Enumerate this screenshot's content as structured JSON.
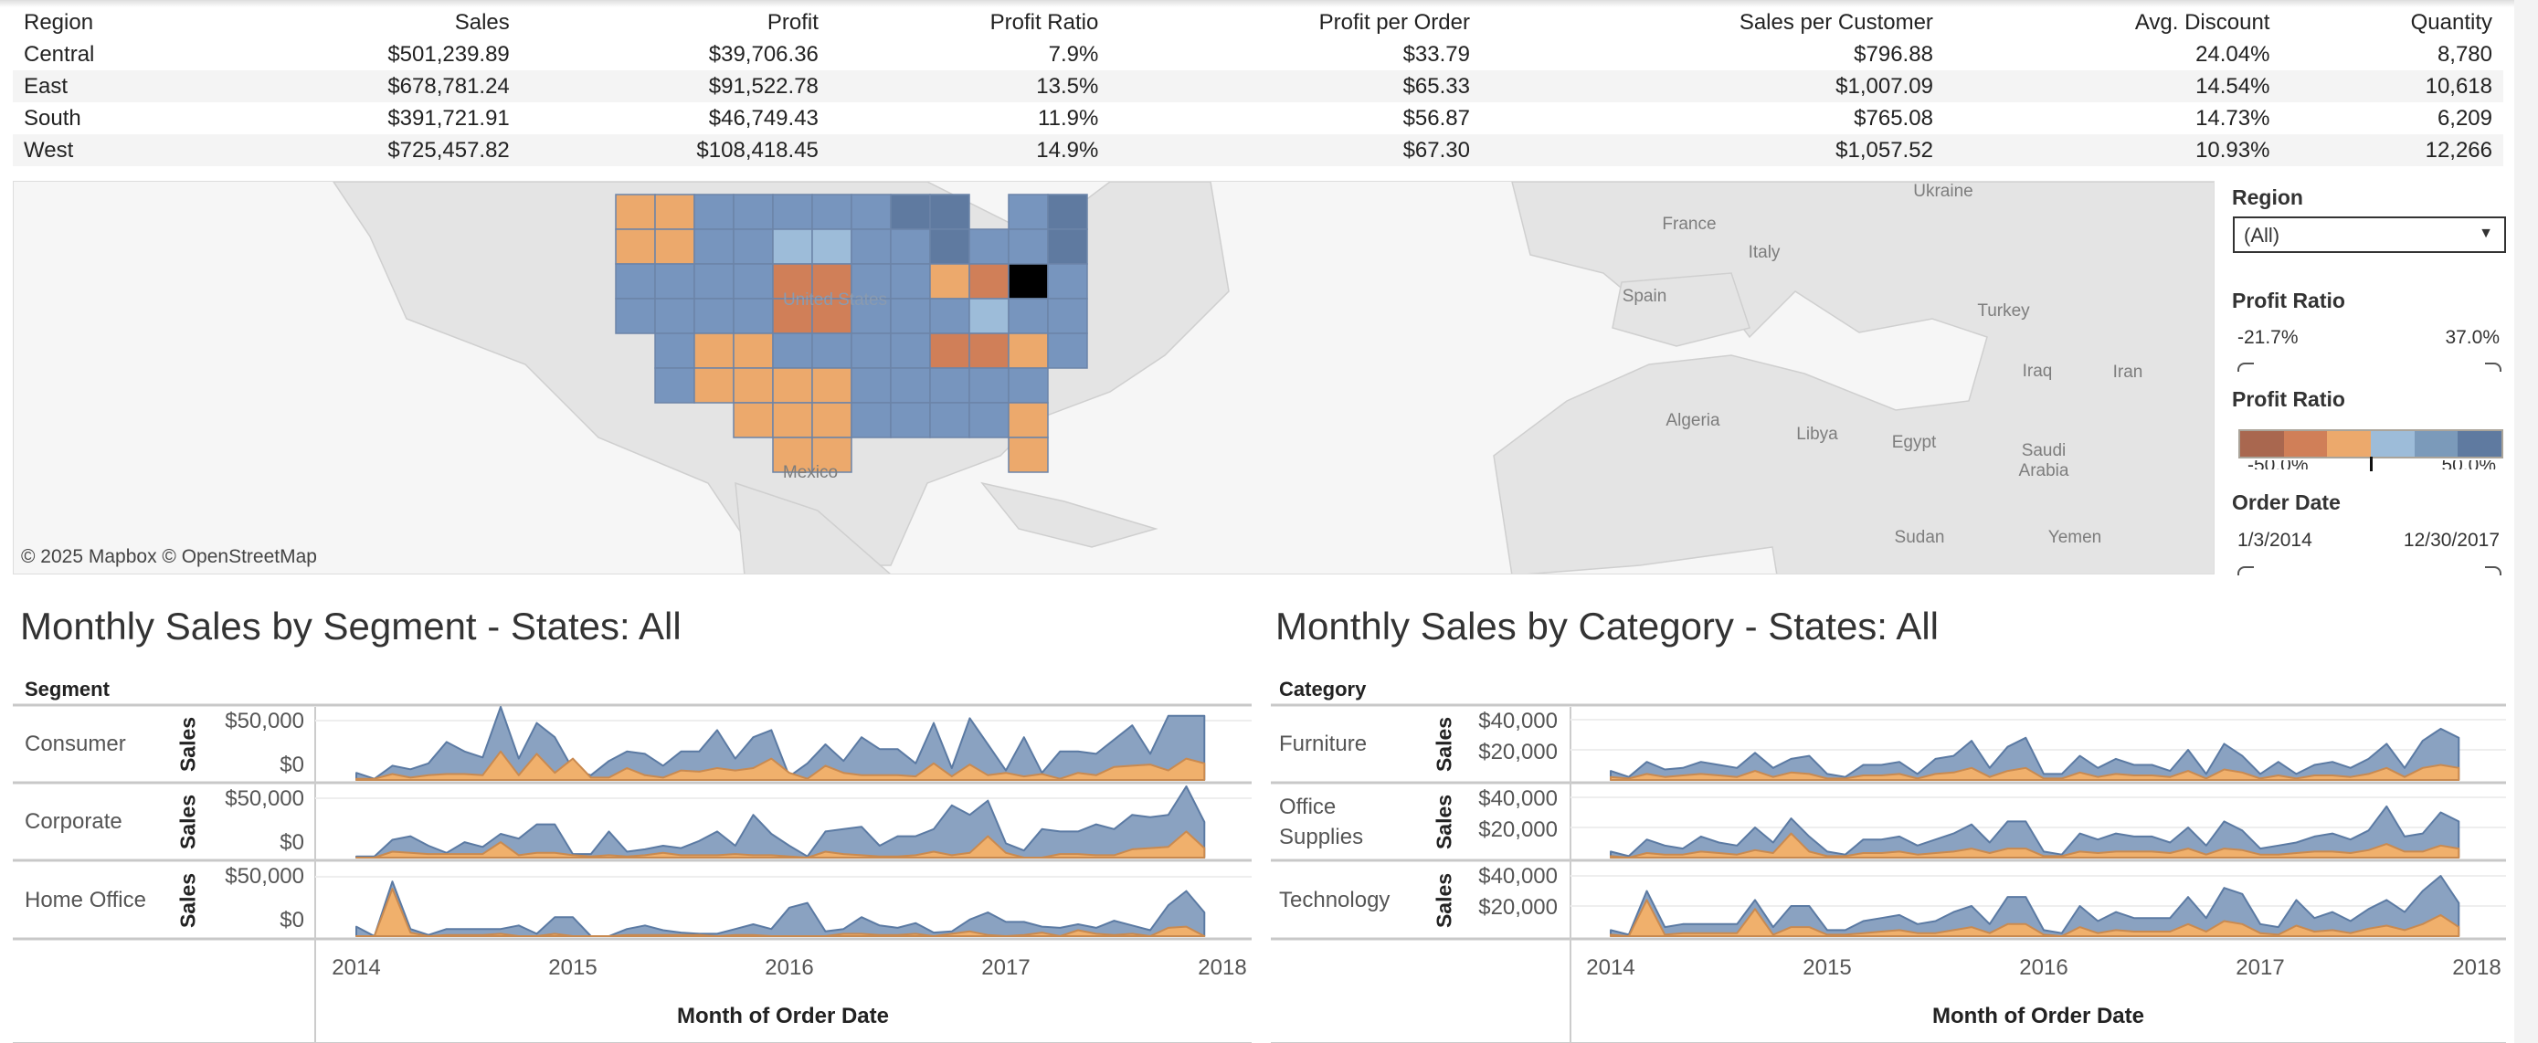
{
  "table": {
    "headers": [
      "Region",
      "Sales",
      "Profit",
      "Profit Ratio",
      "Profit per Order",
      "Sales per Customer",
      "Avg. Discount",
      "Quantity"
    ],
    "rows": [
      [
        "Central",
        "$501,239.89",
        "$39,706.36",
        "7.9%",
        "$33.79",
        "$796.88",
        "24.04%",
        "8,780"
      ],
      [
        "East",
        "$678,781.24",
        "$91,522.78",
        "13.5%",
        "$65.33",
        "$1,007.09",
        "14.54%",
        "10,618"
      ],
      [
        "South",
        "$391,721.91",
        "$46,749.43",
        "11.9%",
        "$56.87",
        "$765.08",
        "14.73%",
        "6,209"
      ],
      [
        "West",
        "$725,457.82",
        "$108,418.45",
        "14.9%",
        "$67.30",
        "$1,057.52",
        "10.93%",
        "12,266"
      ]
    ]
  },
  "map": {
    "labels": [
      "Mexico",
      "United States",
      "France",
      "Italy",
      "Spain",
      "Ukraine",
      "Turkey",
      "Algeria",
      "Libya",
      "Egypt",
      "Iraq",
      "Iran",
      "Saudi Arabia",
      "Sudan",
      "Yemen"
    ],
    "copyright": "© 2025 Mapbox  © OpenStreetMap"
  },
  "filters": {
    "region_label": "Region",
    "region_value": "(All)",
    "profit_ratio_label": "Profit Ratio",
    "profit_ratio_min": "-21.7%",
    "profit_ratio_max": "37.0%",
    "legend_label": "Profit Ratio",
    "legend_min": "-50.0%",
    "legend_max": "50.0%",
    "legend_colors": [
      "#a9674f",
      "#d07f58",
      "#eca96c",
      "#9dbcd9",
      "#7b9aba",
      "#5f7aa0"
    ],
    "order_date_label": "Order Date",
    "order_date_min": "1/3/2014",
    "order_date_max": "12/30/2017"
  },
  "chart_data": [
    {
      "type": "area",
      "title": "Monthly Sales by Segment - States: All",
      "row_header": "Segment",
      "ylabel": "Sales",
      "xlabel": "Month of Order Date",
      "x_ticks": [
        "2014",
        "2015",
        "2016",
        "2017",
        "2018"
      ],
      "y_ticks": [
        "$50,000",
        "$0"
      ],
      "units": "thousands USD, monthly Jan 2014 - Dec 2017",
      "rows": [
        {
          "name": "Consumer",
          "blue": [
            6,
            1,
            12,
            9,
            14,
            32,
            24,
            19,
            62,
            18,
            48,
            36,
            9,
            4,
            16,
            24,
            22,
            12,
            24,
            24,
            42,
            18,
            36,
            42,
            3,
            14,
            30,
            16,
            36,
            26,
            26,
            14,
            48,
            10,
            52,
            30,
            8,
            36,
            6,
            24,
            24,
            22,
            34,
            46,
            22,
            54,
            54,
            54
          ],
          "orange": [
            1,
            1,
            5,
            2,
            4,
            5,
            5,
            4,
            24,
            4,
            22,
            6,
            18,
            2,
            2,
            10,
            4,
            2,
            8,
            7,
            10,
            8,
            10,
            18,
            6,
            1,
            12,
            6,
            4,
            4,
            4,
            3,
            14,
            3,
            13,
            4,
            6,
            3,
            5,
            1,
            6,
            4,
            11,
            12,
            13,
            8,
            18,
            14
          ]
        },
        {
          "name": "Corporate",
          "blue": [
            1,
            1,
            15,
            18,
            10,
            4,
            13,
            9,
            20,
            16,
            28,
            28,
            3,
            3,
            22,
            5,
            7,
            10,
            8,
            14,
            22,
            10,
            36,
            20,
            10,
            1,
            22,
            24,
            26,
            10,
            18,
            18,
            24,
            44,
            36,
            48,
            12,
            6,
            24,
            22,
            22,
            28,
            24,
            36,
            34,
            36,
            60,
            30
          ],
          "orange": [
            0,
            0,
            5,
            4,
            3,
            3,
            3,
            3,
            13,
            2,
            4,
            4,
            2,
            1,
            2,
            1,
            2,
            4,
            2,
            2,
            2,
            3,
            2,
            2,
            1,
            0,
            5,
            3,
            2,
            1,
            1,
            2,
            5,
            2,
            4,
            18,
            4,
            0,
            0,
            3,
            3,
            2,
            2,
            7,
            8,
            9,
            22,
            8
          ]
        },
        {
          "name": "Home Office",
          "blue": [
            8,
            0,
            46,
            6,
            1,
            6,
            6,
            6,
            6,
            9,
            2,
            16,
            16,
            0,
            0,
            6,
            9,
            5,
            3,
            2,
            2,
            6,
            10,
            6,
            24,
            28,
            4,
            6,
            16,
            9,
            7,
            11,
            3,
            4,
            14,
            20,
            12,
            12,
            8,
            7,
            10,
            7,
            13,
            9,
            5,
            26,
            38,
            20
          ],
          "orange": [
            0,
            0,
            40,
            3,
            0,
            1,
            1,
            1,
            2,
            0,
            0,
            2,
            0,
            0,
            0,
            1,
            1,
            1,
            1,
            1,
            0,
            1,
            1,
            0,
            0,
            0,
            0,
            2,
            2,
            1,
            1,
            2,
            0,
            2,
            4,
            1,
            0,
            1,
            3,
            0,
            5,
            2,
            1,
            2,
            0,
            7,
            8,
            0
          ]
        }
      ]
    },
    {
      "type": "area",
      "title": "Monthly Sales by Category - States: All",
      "row_header": "Category",
      "ylabel": "Sales",
      "xlabel": "Month of Order Date",
      "x_ticks": [
        "2014",
        "2015",
        "2016",
        "2017",
        "2018"
      ],
      "y_ticks": [
        "$40,000",
        "$20,000"
      ],
      "units": "thousands USD, monthly Jan 2014 - Dec 2017",
      "rows": [
        {
          "name": "Furniture",
          "blue": [
            6,
            2,
            12,
            7,
            8,
            12,
            10,
            8,
            18,
            8,
            14,
            16,
            4,
            2,
            10,
            10,
            12,
            4,
            14,
            16,
            26,
            8,
            22,
            28,
            4,
            4,
            16,
            8,
            14,
            10,
            10,
            6,
            20,
            4,
            24,
            16,
            4,
            12,
            4,
            10,
            12,
            8,
            14,
            24,
            8,
            26,
            34,
            28
          ],
          "orange": [
            2,
            1,
            4,
            2,
            3,
            4,
            3,
            2,
            6,
            2,
            5,
            4,
            1,
            1,
            3,
            3,
            4,
            1,
            4,
            5,
            8,
            2,
            6,
            8,
            1,
            1,
            5,
            2,
            4,
            3,
            3,
            2,
            6,
            1,
            7,
            5,
            1,
            3,
            1,
            3,
            3,
            2,
            4,
            8,
            2,
            8,
            10,
            8
          ]
        },
        {
          "name": "Office Supplies",
          "blue": [
            4,
            1,
            12,
            8,
            6,
            14,
            10,
            8,
            20,
            10,
            26,
            14,
            4,
            2,
            12,
            12,
            14,
            8,
            12,
            16,
            22,
            10,
            24,
            24,
            4,
            2,
            16,
            12,
            16,
            14,
            14,
            10,
            20,
            8,
            24,
            18,
            6,
            8,
            10,
            14,
            16,
            12,
            18,
            34,
            14,
            16,
            30,
            24
          ],
          "orange": [
            1,
            0,
            3,
            2,
            2,
            4,
            3,
            2,
            5,
            3,
            16,
            4,
            1,
            1,
            3,
            3,
            4,
            2,
            3,
            4,
            6,
            3,
            6,
            6,
            1,
            1,
            4,
            3,
            4,
            4,
            4,
            3,
            6,
            2,
            6,
            5,
            2,
            2,
            3,
            4,
            4,
            3,
            5,
            9,
            4,
            4,
            8,
            6
          ]
        },
        {
          "name": "Technology",
          "blue": [
            4,
            1,
            30,
            6,
            8,
            8,
            8,
            8,
            24,
            6,
            20,
            20,
            4,
            4,
            10,
            12,
            14,
            8,
            10,
            16,
            20,
            8,
            26,
            26,
            4,
            2,
            20,
            10,
            16,
            12,
            12,
            12,
            26,
            12,
            32,
            28,
            8,
            6,
            24,
            12,
            16,
            10,
            18,
            24,
            16,
            30,
            40,
            22
          ],
          "orange": [
            1,
            0,
            24,
            1,
            2,
            2,
            2,
            2,
            18,
            1,
            6,
            6,
            1,
            1,
            2,
            3,
            4,
            2,
            2,
            4,
            6,
            2,
            8,
            8,
            1,
            0,
            6,
            2,
            4,
            3,
            3,
            3,
            8,
            3,
            10,
            8,
            2,
            1,
            7,
            3,
            4,
            2,
            5,
            7,
            4,
            8,
            14,
            6
          ]
        }
      ]
    }
  ]
}
